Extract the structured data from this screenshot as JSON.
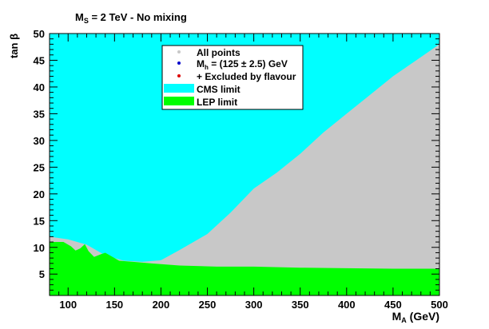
{
  "header": {
    "ms_prefix": "M",
    "ms_sub": "S",
    "ms_rest": " = 2 TeV  -  No mixing"
  },
  "chart_data": {
    "type": "area",
    "title": "M_S = 2 TeV  -  No mixing",
    "xlabel_main": "M",
    "xlabel_sub": "A",
    "xlabel_unit": " (GeV)",
    "ylabel": "tan β",
    "xlim": [
      80,
      500
    ],
    "ylim": [
      1,
      50
    ],
    "xticks": [
      100,
      150,
      200,
      250,
      300,
      350,
      400,
      450,
      500
    ],
    "yticks": [
      5,
      10,
      15,
      20,
      25,
      30,
      35,
      40,
      45,
      50
    ],
    "colors": {
      "all_points": "#c8c8c8",
      "mh": "#0000cc",
      "flavour": "#dd0000",
      "cms": "#00ffff",
      "lep": "#00ff00"
    },
    "legend": {
      "placement": "top-center",
      "entries": [
        {
          "key": "all_points",
          "label": "All points",
          "style": "dot"
        },
        {
          "key": "mh",
          "label_pre": "M",
          "label_sub": "h",
          "label_post": " = (125 ± 2.5) GeV",
          "style": "dot"
        },
        {
          "key": "flavour",
          "label": "+ Excluded by flavour",
          "style": "dot"
        },
        {
          "key": "cms",
          "label": "CMS limit",
          "style": "box"
        },
        {
          "key": "lep",
          "label": "LEP limit",
          "style": "box"
        }
      ]
    },
    "series": [
      {
        "name": "CMS limit",
        "boundary": [
          [
            80,
            12
          ],
          [
            100,
            11.5
          ],
          [
            120,
            10.5
          ],
          [
            140,
            8.5
          ],
          [
            160,
            7.5
          ],
          [
            180,
            7.3
          ],
          [
            200,
            7.6
          ],
          [
            220,
            9.5
          ],
          [
            250,
            12.5
          ],
          [
            275,
            16.5
          ],
          [
            300,
            21
          ],
          [
            325,
            24
          ],
          [
            350,
            27.5
          ],
          [
            375,
            31.5
          ],
          [
            400,
            35
          ],
          [
            425,
            38.5
          ],
          [
            450,
            42
          ],
          [
            475,
            45
          ],
          [
            500,
            48
          ]
        ]
      },
      {
        "name": "LEP limit",
        "boundary": [
          [
            80,
            11
          ],
          [
            95,
            11
          ],
          [
            103,
            10.2
          ],
          [
            108,
            9.4
          ],
          [
            113,
            9.8
          ],
          [
            118,
            10.6
          ],
          [
            122,
            9.3
          ],
          [
            128,
            8.2
          ],
          [
            135,
            8.7
          ],
          [
            140,
            9.0
          ],
          [
            147,
            8.3
          ],
          [
            155,
            7.5
          ],
          [
            170,
            7.3
          ],
          [
            190,
            7.0
          ],
          [
            220,
            6.6
          ],
          [
            260,
            6.4
          ],
          [
            300,
            6.4
          ],
          [
            350,
            6.2
          ],
          [
            400,
            6.1
          ],
          [
            450,
            6.0
          ],
          [
            500,
            6.0
          ]
        ]
      }
    ]
  }
}
